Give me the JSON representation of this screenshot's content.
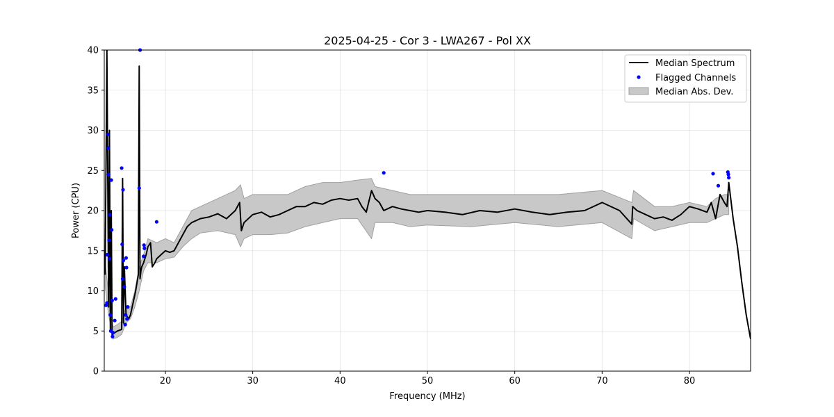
{
  "chart_data": {
    "type": "line",
    "title": "2025-04-25 - Cor 3 - LWA267 - Pol XX",
    "xlabel": "Frequency (MHz)",
    "ylabel": "Power (CPU)",
    "xlim": [
      13.0,
      87.0
    ],
    "ylim": [
      0,
      40
    ],
    "x_ticks": [
      20,
      30,
      40,
      50,
      60,
      70,
      80
    ],
    "y_ticks": [
      0,
      5,
      10,
      15,
      20,
      25,
      30,
      35,
      40
    ],
    "x_tick_labels": [
      "20",
      "30",
      "40",
      "50",
      "60",
      "70",
      "80"
    ],
    "y_tick_labels": [
      "0",
      "5",
      "10",
      "15",
      "20",
      "25",
      "30",
      "35",
      "40"
    ],
    "grid": true,
    "legend_position": "top-right",
    "colors": {
      "median": "#000000",
      "flagged": "#0000ff",
      "mad_fill": "#c8c8c8",
      "mad_edge": "#a0a0a0"
    },
    "series": [
      {
        "name": "Median Spectrum",
        "kind": "line",
        "x": [
          13.1,
          13.3,
          13.5,
          13.6,
          13.7,
          13.8,
          13.9,
          14.0,
          14.2,
          14.5,
          15.0,
          15.1,
          15.2,
          15.3,
          15.5,
          15.8,
          16.0,
          16.3,
          16.6,
          16.9,
          17.0,
          17.1,
          17.2,
          17.3,
          17.5,
          17.8,
          18.0,
          18.3,
          18.5,
          18.8,
          19.0,
          19.5,
          20.0,
          20.5,
          21.0,
          21.5,
          22.0,
          22.5,
          23.0,
          24.0,
          25.0,
          26.0,
          27.0,
          28.0,
          28.5,
          28.7,
          29.0,
          30.0,
          31.0,
          32.0,
          33.0,
          34.0,
          35.0,
          36.0,
          37.0,
          38.0,
          39.0,
          40.0,
          41.0,
          42.0,
          42.5,
          43.0,
          43.6,
          44.0,
          44.5,
          45.0,
          46.0,
          47.0,
          48.0,
          49.0,
          50.0,
          52.0,
          54.0,
          56.0,
          58.0,
          60.0,
          62.0,
          64.0,
          66.0,
          68.0,
          70.0,
          72.0,
          73.4,
          73.5,
          74.0,
          75.0,
          76.0,
          77.0,
          78.0,
          79.0,
          80.0,
          81.0,
          82.0,
          82.5,
          83.0,
          83.5,
          84.0,
          84.3,
          84.5,
          85.0,
          85.5,
          86.0,
          86.5,
          87.0
        ],
        "y": [
          12.0,
          40.0,
          8.0,
          30.0,
          5.0,
          20.0,
          4.5,
          4.6,
          4.8,
          5.0,
          5.2,
          24.0,
          6.0,
          13.0,
          7.0,
          6.5,
          7.0,
          8.5,
          10.0,
          12.0,
          38.0,
          11.5,
          12.5,
          13.0,
          13.5,
          14.5,
          15.5,
          16.0,
          13.0,
          13.5,
          14.0,
          14.5,
          15.0,
          14.8,
          15.0,
          16.0,
          17.0,
          18.0,
          18.5,
          19.0,
          19.2,
          19.6,
          19.0,
          20.0,
          21.0,
          17.5,
          18.5,
          19.5,
          19.8,
          19.2,
          19.5,
          20.0,
          20.5,
          20.5,
          21.0,
          20.8,
          21.3,
          21.5,
          21.3,
          21.5,
          20.5,
          19.8,
          22.5,
          21.5,
          21.0,
          20.0,
          20.5,
          20.2,
          20.0,
          19.8,
          20.0,
          19.8,
          19.5,
          20.0,
          19.8,
          20.2,
          19.8,
          19.5,
          19.8,
          20.0,
          21.0,
          20.0,
          18.3,
          20.5,
          20.0,
          19.5,
          19.0,
          19.2,
          18.8,
          19.5,
          20.5,
          20.2,
          19.8,
          21.0,
          19.0,
          22.0,
          21.0,
          20.5,
          23.5,
          19.0,
          15.5,
          11.0,
          7.0,
          4.0
        ]
      },
      {
        "name": "Median Abs. Dev.",
        "kind": "band",
        "x": [
          13.1,
          13.5,
          14.0,
          14.5,
          15.0,
          15.5,
          16.0,
          16.5,
          17.0,
          17.5,
          18.0,
          19.0,
          20.0,
          21.0,
          22.0,
          23.0,
          24.0,
          26.0,
          28.0,
          28.6,
          29.0,
          30.0,
          32.0,
          34.0,
          36.0,
          38.0,
          40.0,
          42.0,
          43.6,
          44.0,
          46.0,
          48.0,
          50.0,
          55.0,
          60.0,
          65.0,
          70.0,
          73.4,
          73.6,
          76.0,
          78.0,
          80.0,
          82.0,
          83.0,
          84.0,
          84.5
        ],
        "lower": [
          10.5,
          7.0,
          4.0,
          4.2,
          4.6,
          6.0,
          6.5,
          8.0,
          10.0,
          12.5,
          13.5,
          13.5,
          14.0,
          14.2,
          15.5,
          16.5,
          17.2,
          17.5,
          17.0,
          15.5,
          16.5,
          17.0,
          17.0,
          17.2,
          18.0,
          18.5,
          19.0,
          19.0,
          16.5,
          18.5,
          18.5,
          18.0,
          18.2,
          18.0,
          18.5,
          18.0,
          18.5,
          16.5,
          19.0,
          17.5,
          18.0,
          18.5,
          18.5,
          19.0,
          19.5,
          19.5
        ],
        "upper": [
          13.5,
          9.5,
          5.5,
          5.8,
          6.2,
          8.0,
          8.0,
          10.0,
          13.0,
          14.5,
          16.5,
          16.0,
          16.5,
          16.0,
          18.0,
          20.0,
          20.5,
          21.5,
          22.5,
          23.2,
          21.5,
          22.0,
          22.0,
          22.0,
          23.0,
          23.5,
          23.5,
          23.8,
          24.0,
          23.0,
          22.5,
          22.0,
          22.0,
          22.0,
          22.0,
          22.0,
          22.5,
          21.0,
          22.5,
          20.5,
          20.5,
          21.0,
          20.5,
          21.5,
          22.0,
          22.0
        ]
      },
      {
        "name": "Flagged Channels",
        "kind": "scatter",
        "x": [
          13.2,
          13.3,
          13.35,
          13.4,
          13.45,
          13.5,
          13.55,
          13.6,
          13.65,
          13.7,
          13.75,
          13.8,
          13.85,
          13.9,
          13.95,
          14.0,
          14.2,
          14.3,
          15.0,
          15.05,
          15.1,
          15.15,
          15.2,
          15.3,
          15.4,
          15.45,
          15.5,
          15.55,
          15.6,
          15.7,
          17.0,
          17.1,
          17.5,
          17.55,
          17.6,
          19.0,
          45.0,
          82.7,
          83.3,
          84.4,
          84.45,
          84.5
        ],
        "y": [
          8.2,
          8.5,
          14.5,
          29.5,
          27.8,
          24.5,
          16.3,
          14.0,
          19.5,
          7.0,
          5.0,
          23.8,
          17.6,
          8.8,
          4.3,
          4.8,
          6.3,
          9.0,
          25.3,
          15.8,
          11.5,
          22.6,
          13.8,
          10.5,
          5.8,
          7.0,
          14.1,
          12.9,
          6.5,
          8.0,
          22.8,
          40.0,
          14.3,
          15.7,
          15.3,
          18.6,
          24.7,
          24.6,
          23.1,
          24.8,
          24.5,
          24.1
        ]
      }
    ],
    "legend": [
      {
        "label": "Median Spectrum",
        "symbol": "line"
      },
      {
        "label": "Flagged Channels",
        "symbol": "dot"
      },
      {
        "label": "Median Abs. Dev.",
        "symbol": "patch"
      }
    ]
  }
}
